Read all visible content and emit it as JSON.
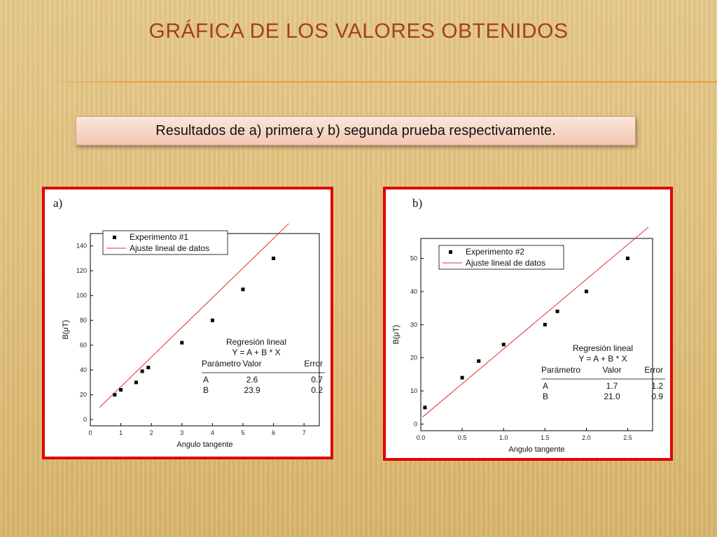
{
  "slide": {
    "title": "GRÁFICA DE LOS VALORES OBTENIDOS",
    "subtitle": "Resultados de a) primera  y  b) segunda  prueba respectivamente."
  },
  "colors": {
    "title": "#a3401d",
    "panel_border": "#e00000",
    "fit_line": "#e03030",
    "points": "#000000"
  },
  "chart_data": [
    {
      "type": "scatter",
      "panel_label": "a)",
      "xlabel": "Angulo tangente",
      "ylabel": "B(μT)",
      "xlim": [
        0,
        7.5
      ],
      "ylim": [
        -5,
        150
      ],
      "xticks": [
        0,
        1,
        2,
        3,
        4,
        5,
        6,
        7
      ],
      "yticks": [
        0,
        20,
        40,
        60,
        80,
        100,
        120,
        140
      ],
      "legend_placement": "top-left",
      "series": [
        {
          "name": "Experimento #1",
          "kind": "points",
          "x": [
            0.8,
            1.0,
            1.5,
            1.7,
            1.9,
            3.0,
            4.0,
            5.0,
            6.0
          ],
          "y": [
            20,
            24,
            30,
            39,
            42,
            62,
            80,
            105,
            130
          ]
        },
        {
          "name": "Ajuste lineal de datos",
          "kind": "line",
          "x": [
            0.3,
            6.5
          ],
          "y": [
            9.8,
            158
          ]
        }
      ],
      "regression": {
        "title": "Regresión lineal",
        "equation": "Y = A + B * X",
        "headers": [
          "Parámetro",
          "Valor",
          "Error"
        ],
        "rows": [
          [
            "A",
            "2.6",
            "0.7"
          ],
          [
            "B",
            "23.9",
            "0.2"
          ]
        ]
      }
    },
    {
      "type": "scatter",
      "panel_label": "b)",
      "xlabel": "Angulo tangente",
      "ylabel": "B(μT)",
      "xlim": [
        0,
        2.8
      ],
      "ylim": [
        -2,
        56
      ],
      "xticks": [
        0.0,
        0.5,
        1.0,
        1.5,
        2.0,
        2.5
      ],
      "yticks": [
        0,
        10,
        20,
        30,
        40,
        50
      ],
      "legend_placement": "top-left",
      "series": [
        {
          "name": "Experimento #2",
          "kind": "points",
          "x": [
            0.05,
            0.5,
            0.7,
            1.0,
            1.5,
            1.65,
            2.0,
            2.5
          ],
          "y": [
            5,
            14,
            19,
            24,
            30,
            34,
            40,
            50
          ]
        },
        {
          "name": "Ajuste lineal de datos",
          "kind": "line",
          "x": [
            0.02,
            2.75
          ],
          "y": [
            2.1,
            59.4
          ]
        }
      ],
      "regression": {
        "title": "Regresión lineal",
        "equation": "Y = A + B * X",
        "headers": [
          "Parámetro",
          "Valor",
          "Error"
        ],
        "rows": [
          [
            "A",
            "1.7",
            "1.2"
          ],
          [
            "B",
            "21.0",
            "0.9"
          ]
        ]
      }
    }
  ]
}
